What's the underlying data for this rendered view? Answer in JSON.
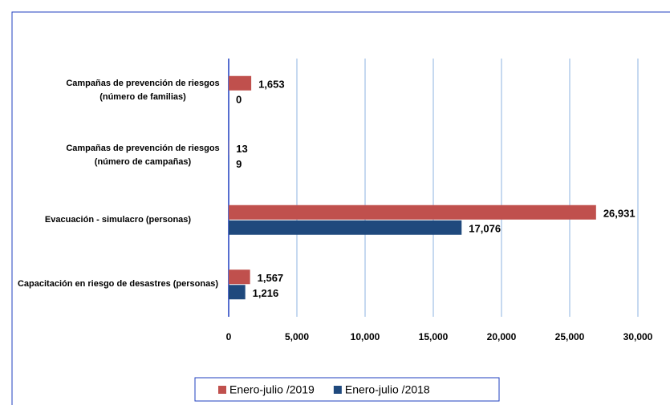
{
  "chart_data": {
    "type": "bar",
    "orientation": "horizontal",
    "categories": [
      "Campañas de prevención de riesgos (número de familias)",
      "Campañas de prevención de riesgos (número de campañas)",
      "Evacuación - simulacro (personas)",
      "Capacitación en riesgo de desastres (personas)"
    ],
    "series": [
      {
        "name": "Enero-julio /2019",
        "color": "#c0504d",
        "values": [
          1653,
          13,
          26931,
          1567
        ],
        "value_labels": [
          "1,653",
          "13",
          "26,931",
          "1,567"
        ]
      },
      {
        "name": "Enero-julio /2018",
        "color": "#1f497d",
        "values": [
          0,
          9,
          17076,
          1216
        ],
        "value_labels": [
          "0",
          "9",
          "17,076",
          "1,216"
        ]
      }
    ],
    "xlim": [
      0,
      30000
    ],
    "xticks": [
      0,
      {
        "value": 5000,
        "label": "5,000"
      },
      {
        "value": 10000,
        "label": "10,000"
      },
      {
        "value": 15000,
        "label": "15,000"
      },
      {
        "value": 20000,
        "label": "20,000"
      },
      {
        "value": 25000,
        "label": "25,000"
      },
      {
        "value": 30000,
        "label": "30,000"
      }
    ],
    "grid": true,
    "legend": "bottom"
  }
}
